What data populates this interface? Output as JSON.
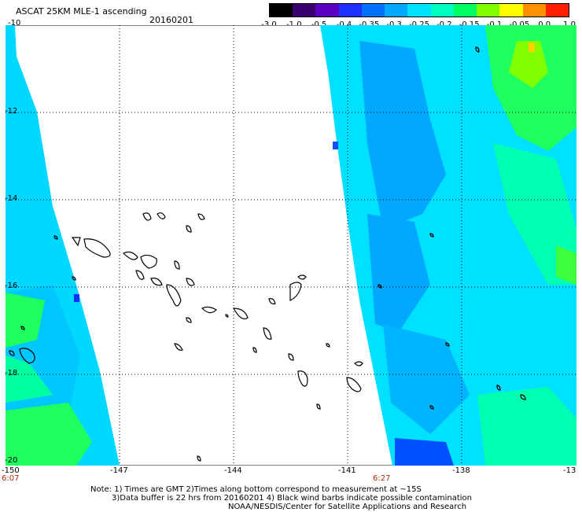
{
  "header": {
    "title": "ASCAT 25KM MLE-1 ascending",
    "date": "20160201"
  },
  "colorbar": {
    "labels": [
      "-3.0",
      "-1.0",
      "-0.5",
      "-0.4",
      "-0.35",
      "-0.3",
      "-0.25",
      "-0.2",
      "-0.15",
      "-0.1",
      "-0.05",
      "0.0",
      "1.0"
    ],
    "colors": [
      "#000000",
      "#3a0070",
      "#5a00c0",
      "#2030ff",
      "#0070ff",
      "#00a8ff",
      "#00e0ff",
      "#00ffc0",
      "#00ff60",
      "#80ff00",
      "#ffff00",
      "#ff9000",
      "#ff2000"
    ]
  },
  "map": {
    "lat_labels": [
      "-10",
      "-12",
      "-14",
      "-16",
      "-18",
      "-20"
    ],
    "lon_labels": [
      "-150",
      "-147",
      "-144",
      "-141",
      "-138",
      "-13"
    ],
    "times": {
      "left": "6:07",
      "mid": "6:27"
    },
    "palette": {
      "sea_blue": "#00b0ff",
      "cyan": "#00e8ff",
      "green": "#00ff70",
      "dark_blue": "#0050ff"
    }
  },
  "footer": {
    "line1": "Note: 1) Times are GMT 2)Times along bottom correspond to measurement at ~15S",
    "line2": "3)Data buffer is 22 hrs from 20160201 4) Black wind barbs indicate possible contamination",
    "line3": "NOAA/NESDIS/Center for Satellite Applications and Research"
  }
}
